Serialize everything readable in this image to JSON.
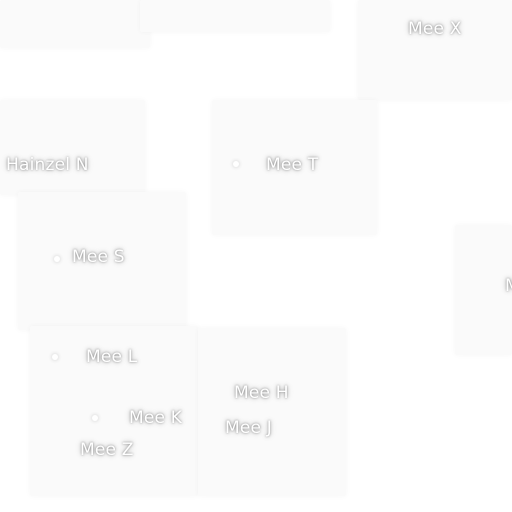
{
  "map": {
    "labels": [
      {
        "id": "mee-x",
        "text": "Mee X"
      },
      {
        "id": "hainzel-n",
        "text": "Hainzel N"
      },
      {
        "id": "mee-t",
        "text": "Mee T"
      },
      {
        "id": "mee-s",
        "text": "Mee S"
      },
      {
        "id": "partial-right",
        "text": "M"
      },
      {
        "id": "mee-l",
        "text": "Mee L"
      },
      {
        "id": "mee-h",
        "text": "Mee H"
      },
      {
        "id": "mee-k",
        "text": "Mee K"
      },
      {
        "id": "mee-j",
        "text": "Mee J"
      },
      {
        "id": "mee-z",
        "text": "Mee Z"
      }
    ]
  }
}
